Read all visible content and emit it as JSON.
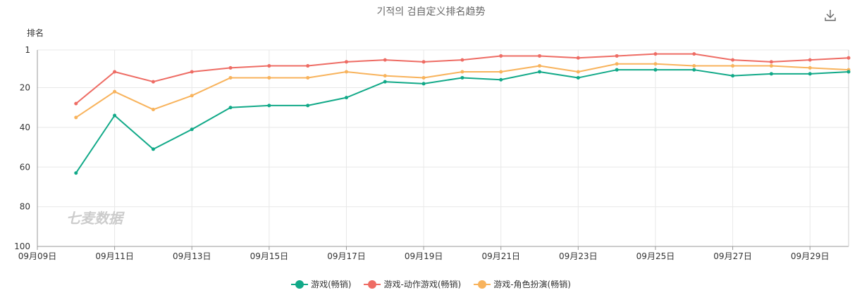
{
  "chart_data": {
    "type": "line",
    "title": "기적의 검自定义排名趋势",
    "ylabel": "排名",
    "y_reversed": true,
    "ylim": [
      1,
      100
    ],
    "y_ticks": [
      "1",
      "20",
      "40",
      "60",
      "80",
      "100"
    ],
    "x_tick_labels": [
      "09月09日",
      "09月11日",
      "09月13日",
      "09月15日",
      "09月17日",
      "09月19日",
      "09月21日",
      "09月23日",
      "09月25日",
      "09月27日",
      "09月29日"
    ],
    "categories": [
      "09月09日",
      "09月10日",
      "09月11日",
      "09月12日",
      "09月13日",
      "09月14日",
      "09月15日",
      "09月16日",
      "09月17日",
      "09月18日",
      "09月19日",
      "09月20日",
      "09月21日",
      "09月22日",
      "09月23日",
      "09月24日",
      "09月25日",
      "09月26日",
      "09月27日",
      "09月28日",
      "09月29日",
      "09月30日"
    ],
    "series": [
      {
        "name": "游戏(畅销)",
        "color": "#11a988",
        "values": [
          null,
          63,
          34,
          51,
          41,
          30,
          29,
          29,
          25,
          17,
          18,
          15,
          16,
          12,
          15,
          11,
          11,
          11,
          14,
          13,
          13,
          12
        ]
      },
      {
        "name": "游戏-动作游戏(畅销)",
        "color": "#ee6c64",
        "values": [
          null,
          28,
          12,
          17,
          12,
          10,
          9,
          9,
          7,
          6,
          7,
          6,
          4,
          4,
          5,
          4,
          3,
          3,
          6,
          7,
          6,
          5
        ]
      },
      {
        "name": "游戏-角色扮演(畅销)",
        "color": "#f8b35c",
        "values": [
          null,
          35,
          22,
          31,
          24,
          15,
          15,
          15,
          12,
          14,
          15,
          12,
          12,
          9,
          12,
          8,
          8,
          9,
          9,
          9,
          10,
          11
        ]
      }
    ],
    "grid": true,
    "legend_position": "bottom-center",
    "watermark": "七麦数据"
  },
  "toolbar": {
    "download_icon": "download-icon"
  }
}
